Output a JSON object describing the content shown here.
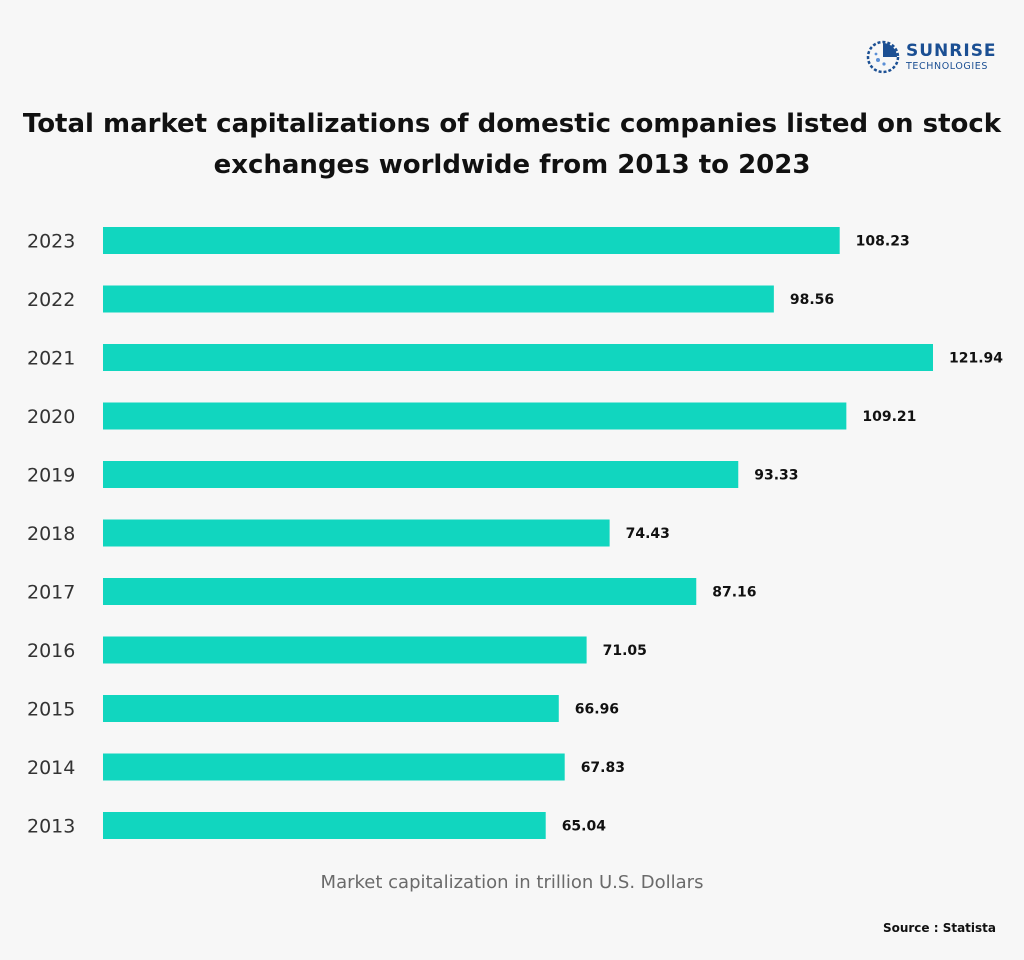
{
  "logo": {
    "name": "SUNRISE",
    "sub": "TECHNOLOGIES",
    "brand_color": "#1b4f93"
  },
  "source": "Source : Statista",
  "chart_data": {
    "type": "bar",
    "orientation": "horizontal",
    "title": "Total market capitalizations of domestic companies listed on stock exchanges worldwide from 2013 to 2023",
    "xlabel": "Market capitalization in trillion U.S. Dollars",
    "ylabel": "",
    "categories": [
      "2023",
      "2022",
      "2021",
      "2020",
      "2019",
      "2018",
      "2017",
      "2016",
      "2015",
      "2014",
      "2013"
    ],
    "values": [
      108.23,
      98.56,
      121.94,
      109.21,
      93.33,
      74.43,
      87.16,
      71.05,
      66.96,
      67.83,
      65.04
    ],
    "value_labels": [
      "108.23",
      "98.56",
      "121.94",
      "109.21",
      "93.33",
      "74.43",
      "87.16",
      "71.05",
      "66.96",
      "67.83",
      "65.04"
    ],
    "xlim": [
      0,
      121.94
    ],
    "grid": false,
    "legend": "none",
    "bar_color": "#11d6bf"
  }
}
